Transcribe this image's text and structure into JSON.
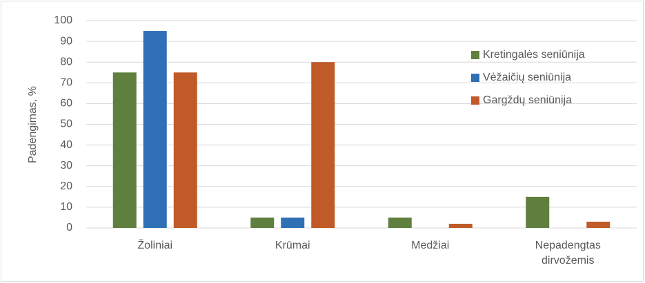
{
  "chart_data": {
    "type": "bar",
    "ylabel": "Padengimas, %",
    "categories": [
      "Žoliniai",
      "Krūmai",
      "Medžiai",
      "Nepadengtas dirvožemis"
    ],
    "series": [
      {
        "name": "Kretingalės seniūnija",
        "color": "#5f7f3e",
        "values": [
          75,
          5,
          5,
          15
        ]
      },
      {
        "name": "Vėžaičių seniūnija",
        "color": "#2e6fb5",
        "values": [
          95,
          5,
          0,
          0
        ]
      },
      {
        "name": "Gargždų seniūnija",
        "color": "#c05a28",
        "values": [
          75,
          80,
          2,
          3
        ]
      }
    ],
    "ylim": [
      0,
      100
    ],
    "yticks": [
      0,
      10,
      20,
      30,
      40,
      50,
      60,
      70,
      80,
      90,
      100
    ],
    "grid": true,
    "legend": "right"
  }
}
